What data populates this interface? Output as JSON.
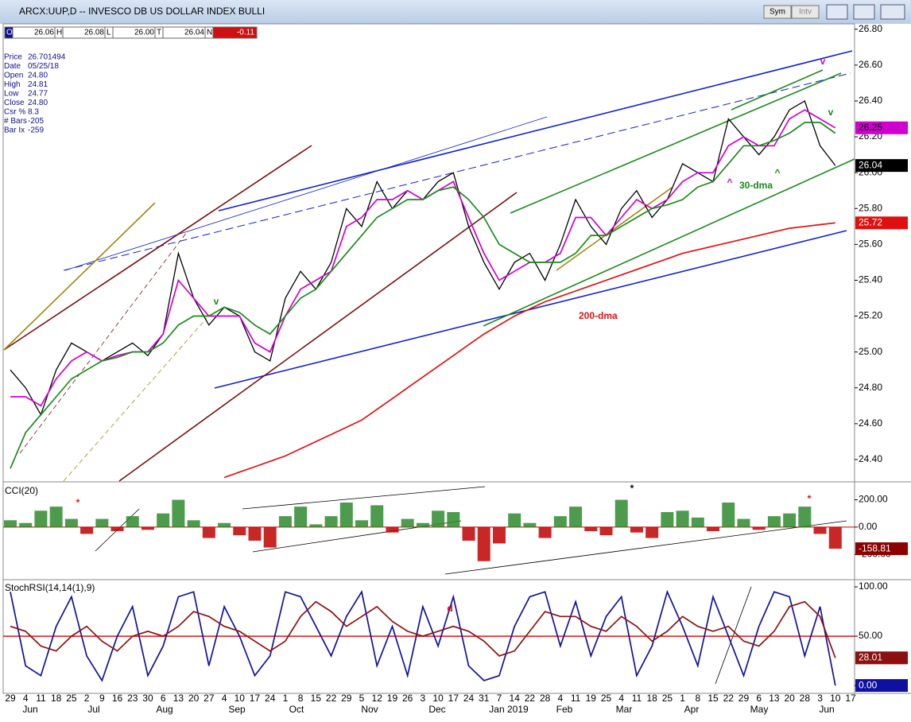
{
  "window": {
    "title": "ARCX:UUP,D -- INVESCO DB US DOLLAR INDEX BULLI",
    "buttons": [
      "Sym",
      "Intv"
    ]
  },
  "quote": [
    {
      "label": "O",
      "value": "26.06"
    },
    {
      "label": "H",
      "value": "26.08"
    },
    {
      "label": "L",
      "value": "26.00"
    },
    {
      "label": "T",
      "value": "26.04"
    },
    {
      "label": "N",
      "value": "-0.11"
    }
  ],
  "info": [
    {
      "label": "Price",
      "value": "26.701494"
    },
    {
      "label": "Date",
      "value": "05/25/18"
    },
    {
      "label": "Open",
      "value": "24.80"
    },
    {
      "label": "High",
      "value": "24.81"
    },
    {
      "label": "Low",
      "value": "24.77"
    },
    {
      "label": "Close",
      "value": "24.80"
    },
    {
      "label": "Csr %",
      "value": "8.3"
    },
    {
      "label": "# Bars",
      "value": "-205"
    },
    {
      "label": "Bar Ix",
      "value": "-259"
    }
  ],
  "chart_data": [
    {
      "type": "line",
      "ylim": [
        24.28,
        26.83
      ],
      "yticks": [
        {
          "value": 24.4,
          "label": "24.40"
        },
        {
          "value": 24.6,
          "label": "24.60"
        },
        {
          "value": 24.8,
          "label": "24.80"
        },
        {
          "value": 25.0,
          "label": "25.00"
        },
        {
          "value": 25.2,
          "label": "25.20"
        },
        {
          "value": 25.4,
          "label": "25.40"
        },
        {
          "value": 25.6,
          "label": "25.60"
        },
        {
          "value": 25.8,
          "label": "25.80"
        },
        {
          "value": 26.0,
          "label": "26.00"
        },
        {
          "value": 26.2,
          "label": "26.20"
        },
        {
          "value": 26.4,
          "label": "26.40"
        },
        {
          "value": 26.6,
          "label": "26.60"
        },
        {
          "value": 26.8,
          "label": "26.80"
        }
      ],
      "series": [
        {
          "color": "#000000",
          "end_label": "26.04",
          "values": [
            24.9,
            24.8,
            24.65,
            24.9,
            25.05,
            25.0,
            24.95,
            25.0,
            25.05,
            24.98,
            25.1,
            25.55,
            25.3,
            25.15,
            25.25,
            25.2,
            25.0,
            24.95,
            25.3,
            25.45,
            25.35,
            25.5,
            25.8,
            25.7,
            25.95,
            25.8,
            25.9,
            25.85,
            25.95,
            26.0,
            25.7,
            25.5,
            25.35,
            25.5,
            25.55,
            25.4,
            25.6,
            25.85,
            25.7,
            25.6,
            25.8,
            25.9,
            25.75,
            25.85,
            26.05,
            26.0,
            25.95,
            26.3,
            26.2,
            26.1,
            26.2,
            26.35,
            26.4,
            26.15,
            26.04,
            null
          ]
        },
        {
          "color": "#d000d0",
          "end_label": "26.25",
          "values": [
            24.75,
            24.75,
            24.7,
            24.85,
            24.95,
            25.0,
            24.95,
            24.98,
            25.0,
            25.0,
            25.1,
            25.4,
            25.3,
            25.2,
            25.2,
            25.2,
            25.05,
            25.0,
            25.2,
            25.35,
            25.4,
            25.45,
            25.7,
            25.75,
            25.85,
            25.85,
            25.9,
            25.85,
            25.9,
            25.95,
            25.75,
            25.55,
            25.4,
            25.45,
            25.5,
            25.5,
            25.55,
            25.75,
            25.75,
            25.65,
            25.75,
            25.85,
            25.8,
            25.85,
            25.95,
            26.0,
            26.0,
            26.15,
            26.2,
            26.15,
            26.15,
            26.3,
            26.35,
            26.3,
            26.25,
            null
          ]
        },
        {
          "name": "30-dma",
          "color": "#1a8a1a",
          "values": [
            24.35,
            24.55,
            24.65,
            24.75,
            24.85,
            24.9,
            24.95,
            24.97,
            25.0,
            25.0,
            25.05,
            25.15,
            25.2,
            25.2,
            25.25,
            25.22,
            25.15,
            25.1,
            25.2,
            25.3,
            25.35,
            25.45,
            25.55,
            25.65,
            25.75,
            25.8,
            25.85,
            25.85,
            25.9,
            25.92,
            25.85,
            25.75,
            25.6,
            25.55,
            25.5,
            25.5,
            25.5,
            25.55,
            25.65,
            25.65,
            25.7,
            25.75,
            25.8,
            25.82,
            25.85,
            25.92,
            25.95,
            26.05,
            26.15,
            26.15,
            26.18,
            26.22,
            26.28,
            26.28,
            26.22,
            null
          ]
        },
        {
          "name": "200-dma",
          "color": "#e01010",
          "end_label": "25.72",
          "values": [
            null,
            null,
            null,
            null,
            null,
            null,
            null,
            null,
            null,
            null,
            null,
            null,
            null,
            null,
            24.3,
            24.33,
            24.36,
            24.39,
            24.42,
            24.46,
            24.5,
            24.54,
            24.58,
            24.62,
            24.68,
            24.74,
            24.8,
            24.86,
            24.92,
            24.98,
            25.04,
            25.1,
            25.15,
            25.2,
            25.24,
            25.28,
            25.31,
            25.34,
            25.37,
            25.4,
            25.43,
            25.46,
            25.49,
            25.52,
            25.55,
            25.57,
            25.59,
            25.61,
            25.63,
            25.65,
            25.67,
            25.69,
            25.7,
            25.71,
            25.72,
            null
          ]
        }
      ],
      "annotations": [
        "v",
        "v",
        "v",
        "^",
        "^"
      ]
    },
    {
      "type": "bar",
      "title": "CCI(20)",
      "ylim": [
        -380,
        320
      ],
      "yticks": [
        {
          "value": 200,
          "label": "200.00"
        },
        {
          "value": 0,
          "label": "0.00"
        },
        {
          "value": -200,
          "label": "-200.00"
        }
      ],
      "up_color": "#2e8b2e",
      "down_color": "#c00000",
      "end_label": "-158.81",
      "values": [
        50,
        30,
        120,
        150,
        60,
        -50,
        60,
        -30,
        80,
        -20,
        100,
        200,
        50,
        -80,
        30,
        -60,
        -100,
        -150,
        80,
        150,
        20,
        80,
        180,
        50,
        160,
        -40,
        60,
        30,
        120,
        110,
        -100,
        -250,
        -120,
        100,
        30,
        -80,
        80,
        150,
        -30,
        -60,
        200,
        -40,
        -80,
        110,
        120,
        70,
        -30,
        180,
        60,
        -20,
        80,
        100,
        150,
        -50,
        -158.81,
        null
      ],
      "annotations": [
        "*",
        "*",
        "*"
      ]
    },
    {
      "type": "line",
      "title": "StochRSI(14,14(1),9)",
      "ylim": [
        -8,
        106.5
      ],
      "yticks": [
        {
          "value": 100,
          "label": "100.00"
        },
        {
          "value": 50,
          "label": "50.00"
        },
        {
          "value": 0,
          "label": "0.00"
        }
      ],
      "series": [
        {
          "color": "#1010a0",
          "end_label": "0.00",
          "values": [
            95,
            20,
            10,
            60,
            90,
            30,
            5,
            50,
            80,
            10,
            40,
            90,
            95,
            20,
            80,
            50,
            10,
            30,
            95,
            90,
            60,
            30,
            70,
            95,
            20,
            60,
            10,
            80,
            40,
            90,
            20,
            5,
            10,
            60,
            90,
            95,
            40,
            85,
            30,
            70,
            90,
            10,
            40,
            95,
            60,
            20,
            90,
            50,
            10,
            60,
            95,
            90,
            30,
            80,
            0,
            null
          ]
        },
        {
          "color": "#8b1010",
          "end_label": "28.01",
          "values": [
            60,
            55,
            40,
            35,
            50,
            60,
            45,
            35,
            50,
            55,
            50,
            60,
            75,
            70,
            60,
            55,
            45,
            35,
            45,
            70,
            85,
            75,
            60,
            70,
            80,
            65,
            55,
            50,
            55,
            60,
            55,
            45,
            30,
            35,
            55,
            75,
            70,
            70,
            60,
            55,
            70,
            60,
            45,
            55,
            70,
            60,
            55,
            60,
            45,
            40,
            55,
            80,
            85,
            70,
            28.01,
            null
          ]
        }
      ],
      "annotations": [
        "d"
      ],
      "categories": [
        "29",
        "4",
        "11",
        "18",
        "25",
        "2",
        "9",
        "16",
        "23",
        "30",
        "6",
        "13",
        "20",
        "27",
        "4",
        "10",
        "17",
        "24",
        "1",
        "8",
        "15",
        "22",
        "29",
        "5",
        "12",
        "19",
        "26",
        "3",
        "10",
        "17",
        "24",
        "31",
        "7",
        "14",
        "22",
        "28",
        "4",
        "11",
        "19",
        "25",
        "4",
        "11",
        "18",
        "25",
        "1",
        "8",
        "15",
        "22",
        "29",
        "6",
        "13",
        "20",
        "28",
        "3",
        "10",
        "17"
      ],
      "months": [
        "Jun",
        "Jul",
        "Aug",
        "Sep",
        "Oct",
        "Nov",
        "Dec",
        "Jan 2019",
        "Feb",
        "Mar",
        "Apr",
        "May",
        "Jun"
      ]
    }
  ]
}
